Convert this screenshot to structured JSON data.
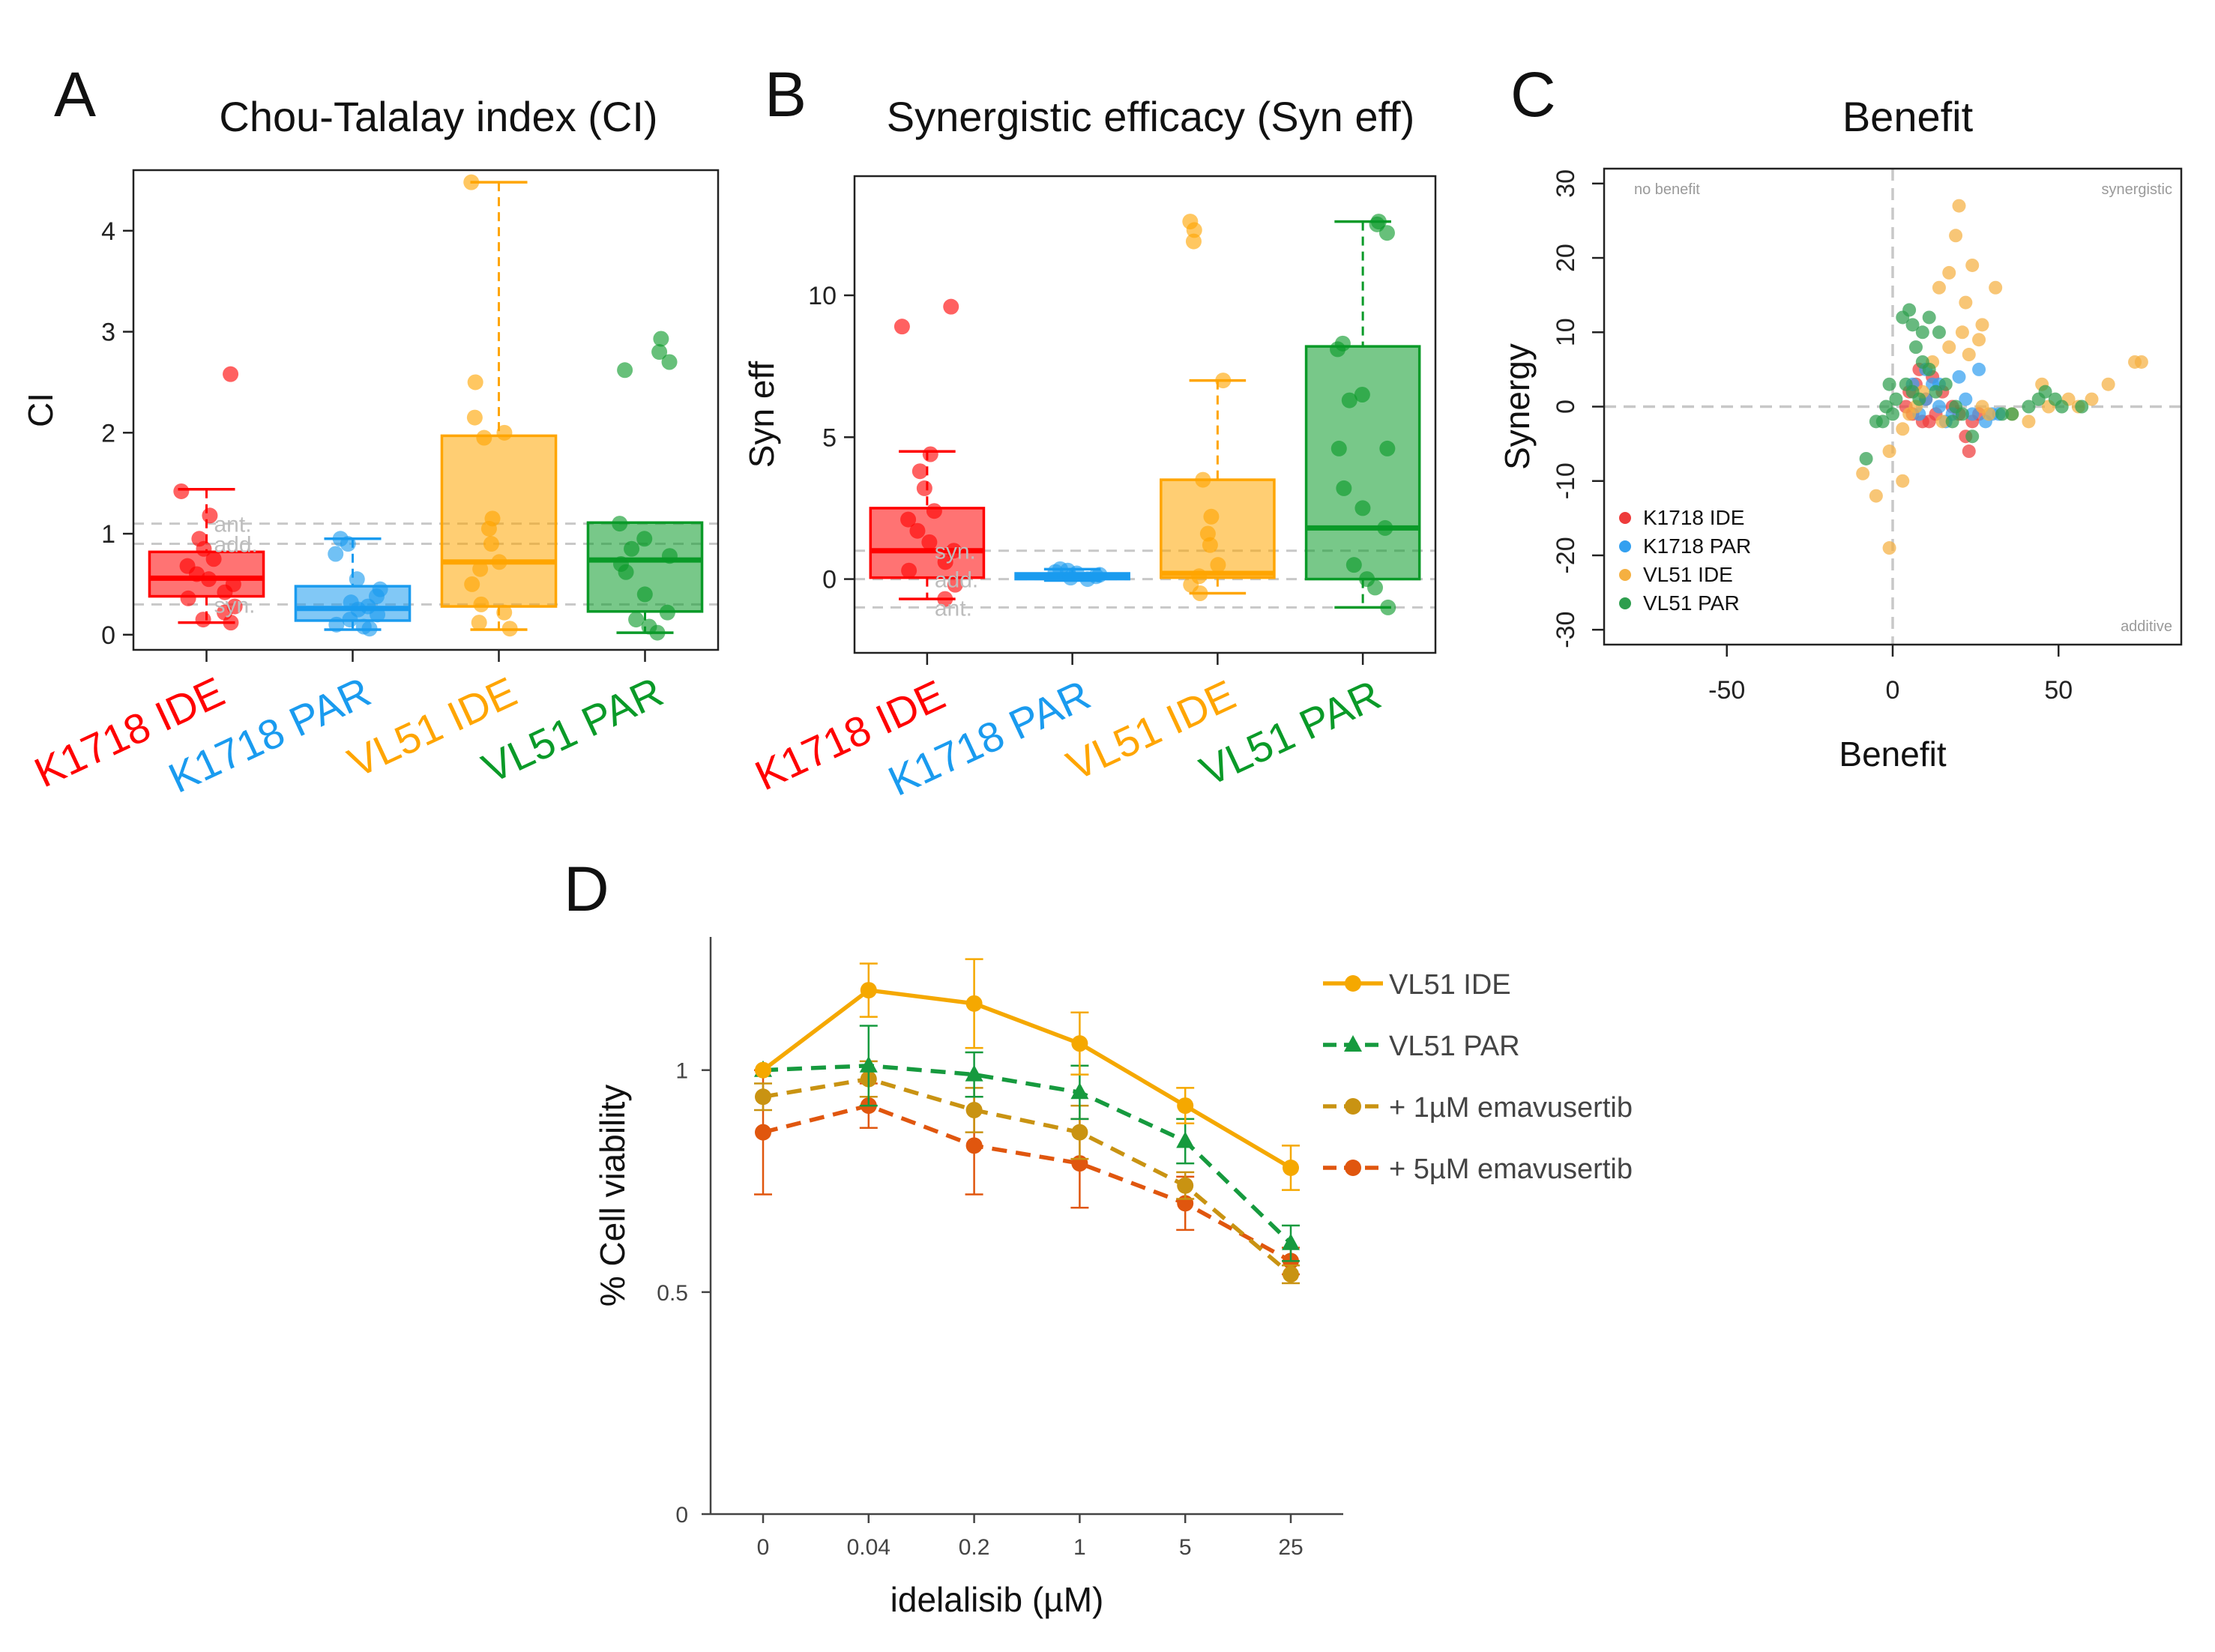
{
  "panels": {
    "A": {
      "label": "A",
      "title": "Chou-Talalay index (CI)"
    },
    "B": {
      "label": "B",
      "title": "Synergistic efficacy (Syn eff)"
    },
    "C": {
      "label": "C",
      "title": "Benefit"
    },
    "D": {
      "label": "D"
    }
  },
  "chart_data": [
    {
      "id": "A",
      "type": "box",
      "title": "Chou-Talalay index (CI)",
      "ylabel": "CI",
      "xlabel": "",
      "ylim": [
        -0.15,
        4.6
      ],
      "yticks": [
        0,
        1,
        2,
        3,
        4
      ],
      "categories": [
        "K1718 IDE",
        "K1718 PAR",
        "VL51 IDE",
        "VL51 PAR"
      ],
      "colors": [
        "#ff0000",
        "#1a9bef",
        "#ffa500",
        "#0a9a28"
      ],
      "reference_lines": [
        {
          "y": 1.1,
          "label": "ant."
        },
        {
          "y": 0.9,
          "label": "add."
        },
        {
          "y": 0.3,
          "label": "syn."
        }
      ],
      "boxes": [
        {
          "min": 0.12,
          "q1": 0.38,
          "median": 0.56,
          "q3": 0.82,
          "max": 1.44
        },
        {
          "min": 0.05,
          "q1": 0.14,
          "median": 0.26,
          "q3": 0.48,
          "max": 0.95
        },
        {
          "min": 0.05,
          "q1": 0.28,
          "median": 0.72,
          "q3": 1.97,
          "max": 4.48
        },
        {
          "min": 0.02,
          "q1": 0.23,
          "median": 0.74,
          "q3": 1.11,
          "max": 1.11
        }
      ],
      "points": [
        [
          2.58,
          1.42,
          1.18,
          0.95,
          0.85,
          0.75,
          0.68,
          0.6,
          0.55,
          0.5,
          0.42,
          0.36,
          0.28,
          0.22,
          0.15,
          0.12
        ],
        [
          0.95,
          0.9,
          0.8,
          0.55,
          0.45,
          0.38,
          0.32,
          0.28,
          0.25,
          0.2,
          0.15,
          0.1,
          0.08,
          0.06
        ],
        [
          4.48,
          2.5,
          2.15,
          2.0,
          1.95,
          1.15,
          1.05,
          0.9,
          0.72,
          0.65,
          0.5,
          0.3,
          0.22,
          0.12,
          0.06
        ],
        [
          2.93,
          2.8,
          2.7,
          2.62,
          1.1,
          0.95,
          0.85,
          0.78,
          0.7,
          0.62,
          0.4,
          0.22,
          0.15,
          0.08,
          0.02
        ]
      ]
    },
    {
      "id": "B",
      "type": "box",
      "title": "Synergistic efficacy (Syn eff)",
      "ylabel": "Syn eff",
      "xlabel": "",
      "ylim": [
        -2.6,
        14.2
      ],
      "yticks": [
        0,
        5,
        10
      ],
      "categories": [
        "K1718 IDE",
        "K1718 PAR",
        "VL51 IDE",
        "VL51 PAR"
      ],
      "colors": [
        "#ff0000",
        "#1a9bef",
        "#ffa500",
        "#0a9a28"
      ],
      "reference_lines": [
        {
          "y": 1,
          "label": "syn."
        },
        {
          "y": 0,
          "label": "add."
        },
        {
          "y": -1,
          "label": "ant."
        }
      ],
      "boxes": [
        {
          "min": -0.7,
          "q1": 0.05,
          "median": 1.0,
          "q3": 2.5,
          "max": 4.5
        },
        {
          "min": -0.05,
          "q1": 0.0,
          "median": 0.1,
          "q3": 0.2,
          "max": 0.35
        },
        {
          "min": -0.5,
          "q1": 0.05,
          "median": 0.2,
          "q3": 3.5,
          "max": 7.0
        },
        {
          "min": -1.0,
          "q1": 0.0,
          "median": 1.8,
          "q3": 8.2,
          "max": 12.6
        }
      ],
      "points": [
        [
          9.6,
          8.9,
          4.4,
          3.8,
          3.2,
          2.4,
          2.1,
          1.7,
          1.3,
          1.0,
          0.6,
          0.3,
          -0.2,
          -0.7
        ],
        [
          0.35,
          0.3,
          0.25,
          0.2,
          0.15,
          0.1,
          0.05,
          0.0
        ],
        [
          12.6,
          12.3,
          11.9,
          7.0,
          3.5,
          2.2,
          1.6,
          1.2,
          0.5,
          0.1,
          -0.2,
          -0.5
        ],
        [
          12.6,
          12.5,
          12.2,
          8.3,
          8.1,
          6.5,
          6.3,
          4.6,
          4.6,
          3.2,
          2.5,
          1.8,
          0.5,
          0.0,
          -0.3,
          -1.0
        ]
      ]
    },
    {
      "id": "C",
      "type": "scatter",
      "title": "Benefit",
      "xlabel": "Benefit",
      "ylabel": "Synergy",
      "xlim": [
        -87,
        87
      ],
      "ylim": [
        -32,
        32
      ],
      "xticks": [
        -50,
        0,
        50
      ],
      "yticks": [
        -30,
        -20,
        -10,
        0,
        10,
        20,
        30
      ],
      "quadrant_labels": {
        "top_left": "no benefit",
        "top_right": "synergistic",
        "bottom_right": "additive"
      },
      "series": [
        {
          "name": "K1718 IDE",
          "color": "#ee3b3b",
          "points": [
            [
              5,
              2
            ],
            [
              6,
              -1
            ],
            [
              7,
              3
            ],
            [
              8,
              5
            ],
            [
              9,
              -2
            ],
            [
              10,
              1
            ],
            [
              12,
              4
            ],
            [
              13,
              -1
            ],
            [
              15,
              2
            ],
            [
              18,
              0
            ],
            [
              20,
              -1
            ],
            [
              22,
              -4
            ],
            [
              24,
              -2
            ],
            [
              26,
              -1
            ],
            [
              4,
              0
            ],
            [
              11,
              -2
            ],
            [
              23,
              -6
            ]
          ]
        },
        {
          "name": "K1718 PAR",
          "color": "#33a0f0",
          "points": [
            [
              6,
              3
            ],
            [
              8,
              -1
            ],
            [
              10,
              1
            ],
            [
              12,
              3
            ],
            [
              14,
              0
            ],
            [
              16,
              -2
            ],
            [
              18,
              -1
            ],
            [
              20,
              4
            ],
            [
              22,
              1
            ],
            [
              24,
              -1
            ],
            [
              26,
              5
            ],
            [
              28,
              -2
            ],
            [
              30,
              -1
            ],
            [
              32,
              -1
            ],
            [
              10,
              5
            ],
            [
              14,
              3
            ]
          ]
        },
        {
          "name": "VL51 IDE",
          "color": "#f5b041",
          "points": [
            [
              20,
              27
            ],
            [
              19,
              23
            ],
            [
              24,
              19
            ],
            [
              31,
              16
            ],
            [
              17,
              18
            ],
            [
              14,
              16
            ],
            [
              22,
              14
            ],
            [
              27,
              11
            ],
            [
              26,
              9
            ],
            [
              21,
              10
            ],
            [
              23,
              7
            ],
            [
              17,
              8
            ],
            [
              12,
              6
            ],
            [
              9,
              2
            ],
            [
              7,
              0
            ],
            [
              5,
              -1
            ],
            [
              3,
              -3
            ],
            [
              -1,
              -6
            ],
            [
              -9,
              -9
            ],
            [
              3,
              -10
            ],
            [
              -5,
              -12
            ],
            [
              -1,
              -19
            ],
            [
              27,
              0
            ],
            [
              36,
              -1
            ],
            [
              41,
              -2
            ],
            [
              47,
              0
            ],
            [
              56,
              0
            ],
            [
              65,
              3
            ],
            [
              73,
              6
            ],
            [
              75,
              6
            ],
            [
              53,
              1
            ],
            [
              60,
              1
            ],
            [
              45,
              3
            ],
            [
              29,
              -1
            ],
            [
              15,
              -2
            ]
          ]
        },
        {
          "name": "VL51 PAR",
          "color": "#2e9e4e",
          "points": [
            [
              3,
              12
            ],
            [
              5,
              13
            ],
            [
              6,
              11
            ],
            [
              9,
              10
            ],
            [
              11,
              12
            ],
            [
              14,
              10
            ],
            [
              7,
              8
            ],
            [
              9,
              6
            ],
            [
              11,
              5
            ],
            [
              4,
              3
            ],
            [
              6,
              2
            ],
            [
              8,
              1
            ],
            [
              1,
              1
            ],
            [
              0,
              -1
            ],
            [
              -1,
              3
            ],
            [
              -2,
              0
            ],
            [
              -3,
              -2
            ],
            [
              -5,
              -2
            ],
            [
              -8,
              -7
            ],
            [
              16,
              3
            ],
            [
              19,
              0
            ],
            [
              21,
              -1
            ],
            [
              24,
              -4
            ],
            [
              33,
              -1
            ],
            [
              36,
              -1
            ],
            [
              41,
              0
            ],
            [
              44,
              1
            ],
            [
              46,
              2
            ],
            [
              49,
              1
            ],
            [
              51,
              0
            ],
            [
              57,
              0
            ],
            [
              18,
              -2
            ],
            [
              13,
              2
            ]
          ]
        }
      ]
    },
    {
      "id": "D",
      "type": "line",
      "title": "",
      "xlabel": "idelalisib (µM)",
      "ylabel": "% Cell viability",
      "x": [
        "0",
        "0.04",
        "0.2",
        "1",
        "5",
        "25"
      ],
      "ylim": [
        0,
        1.3
      ],
      "yticks": [
        0,
        0.5,
        1
      ],
      "series": [
        {
          "name": "VL51 IDE",
          "color": "#f5a800",
          "dashed": false,
          "marker": "circle",
          "values": [
            1.0,
            1.18,
            1.15,
            1.06,
            0.92,
            0.78
          ],
          "errors": [
            0.0,
            0.06,
            0.1,
            0.07,
            0.04,
            0.05
          ]
        },
        {
          "name": "VL51 PAR",
          "color": "#169a3e",
          "dashed": true,
          "marker": "triangle",
          "values": [
            1.0,
            1.01,
            0.99,
            0.95,
            0.84,
            0.61
          ],
          "errors": [
            0.0,
            0.09,
            0.05,
            0.06,
            0.05,
            0.04
          ]
        },
        {
          "name": "+ 1µM emavusertib",
          "color": "#c99312",
          "dashed": true,
          "marker": "circle",
          "values": [
            0.94,
            0.98,
            0.91,
            0.86,
            0.74,
            0.54
          ],
          "errors": [
            0.03,
            0.04,
            0.05,
            0.06,
            0.03,
            0.02
          ]
        },
        {
          "name": "+ 5µM emavusertib",
          "color": "#e0560e",
          "dashed": true,
          "marker": "circle",
          "values": [
            0.86,
            0.92,
            0.83,
            0.79,
            0.7,
            0.57
          ],
          "errors": [
            0.14,
            0.05,
            0.11,
            0.1,
            0.06,
            0.03
          ]
        }
      ]
    }
  ]
}
